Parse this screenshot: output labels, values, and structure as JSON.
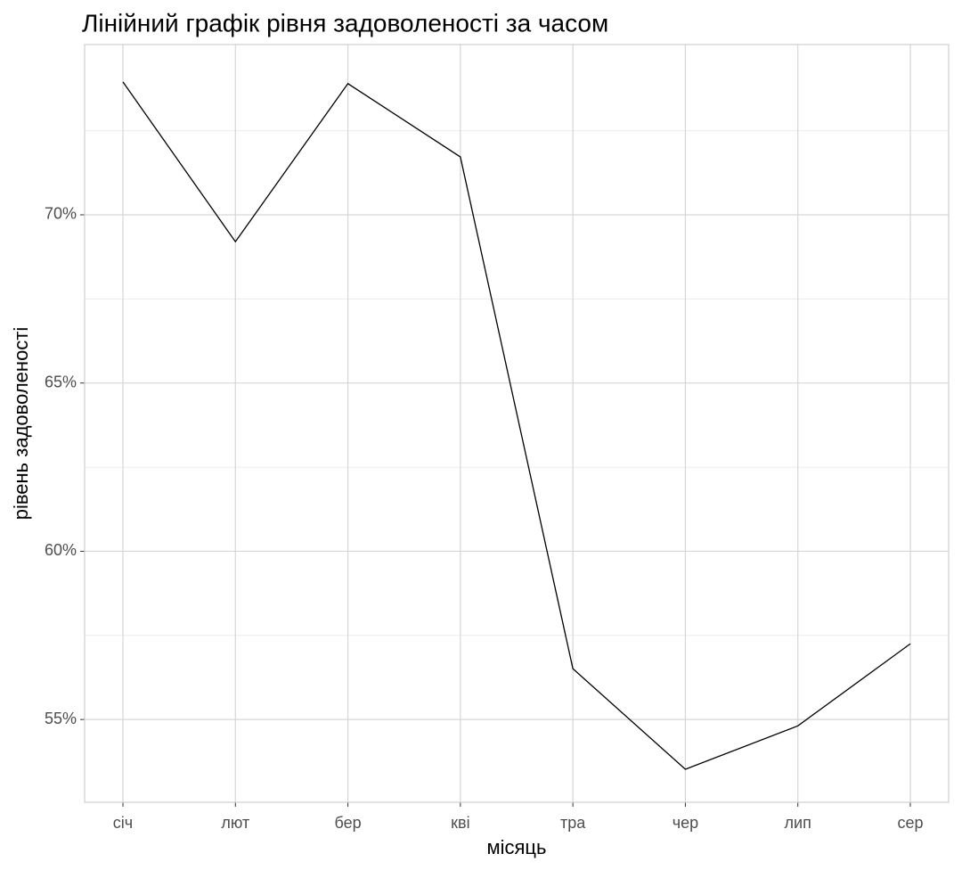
{
  "chart_data": {
    "type": "line",
    "title": "Лінійний графік рівня задоволеності за часом",
    "x_label": "місяць",
    "y_label": "рівень задоволеності",
    "categories": [
      "січ",
      "лют",
      "бер",
      "кві",
      "тра",
      "чер",
      "лип",
      "сер"
    ],
    "series": [
      {
        "name": "рівень задоволеності",
        "color": "#000000",
        "values": [
          73.95,
          69.2,
          73.9,
          71.72,
          56.51,
          53.52,
          54.81,
          57.25
        ]
      }
    ],
    "ylim": [
      52.54,
      75.06
    ],
    "yticks": [
      {
        "value": 55,
        "label": "55%"
      },
      {
        "value": 60,
        "label": "60%"
      },
      {
        "value": 65,
        "label": "65%"
      },
      {
        "value": 70,
        "label": "70%"
      }
    ],
    "y_minor_ticks": [
      57.5,
      62.5,
      67.5,
      72.5
    ],
    "grid": true
  }
}
